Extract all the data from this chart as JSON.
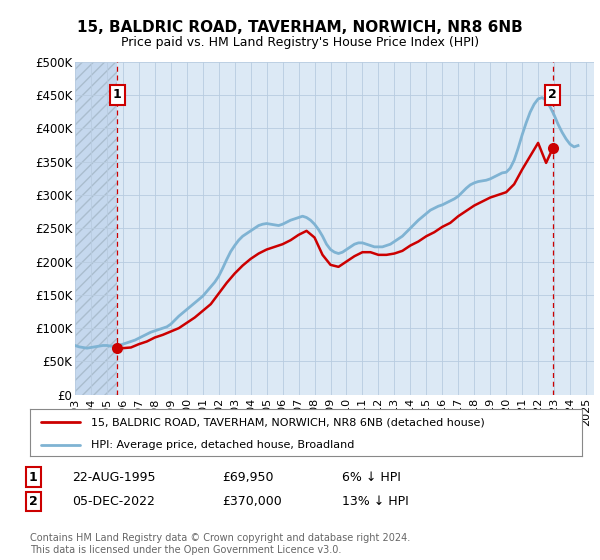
{
  "title": "15, BALDRIC ROAD, TAVERHAM, NORWICH, NR8 6NB",
  "subtitle": "Price paid vs. HM Land Registry's House Price Index (HPI)",
  "ylim": [
    0,
    500000
  ],
  "yticks": [
    0,
    50000,
    100000,
    150000,
    200000,
    250000,
    300000,
    350000,
    400000,
    450000,
    500000
  ],
  "ytick_labels": [
    "£0",
    "£50K",
    "£100K",
    "£150K",
    "£200K",
    "£250K",
    "£300K",
    "£350K",
    "£400K",
    "£450K",
    "£500K"
  ],
  "background_color": "#dce9f5",
  "sale1_date": 1995.65,
  "sale1_price": 69950,
  "sale1_label": "1",
  "sale2_date": 2022.92,
  "sale2_price": 370000,
  "sale2_label": "2",
  "red_line_color": "#cc0000",
  "blue_line_color": "#7fb3d3",
  "dashed_line_color": "#cc0000",
  "marker_color": "#cc0000",
  "note1_date": "22-AUG-1995",
  "note1_price": "£69,950",
  "note1_pct": "6% ↓ HPI",
  "note2_date": "05-DEC-2022",
  "note2_price": "£370,000",
  "note2_pct": "13% ↓ HPI",
  "legend_line1": "15, BALDRIC ROAD, TAVERHAM, NORWICH, NR8 6NB (detached house)",
  "legend_line2": "HPI: Average price, detached house, Broadland",
  "copyright": "Contains HM Land Registry data © Crown copyright and database right 2024.\nThis data is licensed under the Open Government Licence v3.0.",
  "hpi_years": [
    1993.0,
    1993.25,
    1993.5,
    1993.75,
    1994.0,
    1994.25,
    1994.5,
    1994.75,
    1995.0,
    1995.25,
    1995.5,
    1995.75,
    1996.0,
    1996.25,
    1996.5,
    1996.75,
    1997.0,
    1997.25,
    1997.5,
    1997.75,
    1998.0,
    1998.25,
    1998.5,
    1998.75,
    1999.0,
    1999.25,
    1999.5,
    1999.75,
    2000.0,
    2000.25,
    2000.5,
    2000.75,
    2001.0,
    2001.25,
    2001.5,
    2001.75,
    2002.0,
    2002.25,
    2002.5,
    2002.75,
    2003.0,
    2003.25,
    2003.5,
    2003.75,
    2004.0,
    2004.25,
    2004.5,
    2004.75,
    2005.0,
    2005.25,
    2005.5,
    2005.75,
    2006.0,
    2006.25,
    2006.5,
    2006.75,
    2007.0,
    2007.25,
    2007.5,
    2007.75,
    2008.0,
    2008.25,
    2008.5,
    2008.75,
    2009.0,
    2009.25,
    2009.5,
    2009.75,
    2010.0,
    2010.25,
    2010.5,
    2010.75,
    2011.0,
    2011.25,
    2011.5,
    2011.75,
    2012.0,
    2012.25,
    2012.5,
    2012.75,
    2013.0,
    2013.25,
    2013.5,
    2013.75,
    2014.0,
    2014.25,
    2014.5,
    2014.75,
    2015.0,
    2015.25,
    2015.5,
    2015.75,
    2016.0,
    2016.25,
    2016.5,
    2016.75,
    2017.0,
    2017.25,
    2017.5,
    2017.75,
    2018.0,
    2018.25,
    2018.5,
    2018.75,
    2019.0,
    2019.25,
    2019.5,
    2019.75,
    2020.0,
    2020.25,
    2020.5,
    2020.75,
    2021.0,
    2021.25,
    2021.5,
    2021.75,
    2022.0,
    2022.25,
    2022.5,
    2022.75,
    2023.0,
    2023.25,
    2023.5,
    2023.75,
    2024.0,
    2024.25,
    2024.5
  ],
  "hpi_values": [
    74000,
    72000,
    71000,
    70000,
    71000,
    72000,
    73000,
    74000,
    74000,
    73000,
    73000,
    74000,
    76000,
    78000,
    80000,
    82000,
    85000,
    88000,
    91000,
    94000,
    96000,
    98000,
    100000,
    102000,
    106000,
    112000,
    118000,
    123000,
    128000,
    133000,
    138000,
    143000,
    148000,
    155000,
    162000,
    169000,
    178000,
    190000,
    203000,
    215000,
    224000,
    232000,
    238000,
    242000,
    246000,
    250000,
    254000,
    256000,
    257000,
    256000,
    255000,
    254000,
    256000,
    259000,
    262000,
    264000,
    266000,
    268000,
    266000,
    262000,
    256000,
    248000,
    238000,
    226000,
    218000,
    214000,
    212000,
    214000,
    218000,
    222000,
    226000,
    228000,
    228000,
    226000,
    224000,
    222000,
    222000,
    222000,
    224000,
    226000,
    230000,
    234000,
    238000,
    244000,
    250000,
    256000,
    262000,
    267000,
    272000,
    277000,
    280000,
    283000,
    285000,
    288000,
    291000,
    294000,
    298000,
    304000,
    310000,
    315000,
    318000,
    320000,
    321000,
    322000,
    324000,
    327000,
    330000,
    333000,
    334000,
    340000,
    352000,
    370000,
    390000,
    408000,
    424000,
    436000,
    444000,
    446000,
    442000,
    432000,
    420000,
    406000,
    394000,
    384000,
    376000,
    372000,
    374000
  ],
  "price_line_years": [
    1995.65,
    1996.0,
    1996.5,
    1997.0,
    1997.5,
    1998.0,
    1998.5,
    1999.0,
    1999.5,
    2000.0,
    2000.5,
    2001.0,
    2001.5,
    2002.0,
    2002.5,
    2003.0,
    2003.5,
    2004.0,
    2004.5,
    2005.0,
    2005.5,
    2006.0,
    2006.5,
    2007.0,
    2007.5,
    2008.0,
    2008.5,
    2009.0,
    2009.5,
    2010.0,
    2010.5,
    2011.0,
    2011.5,
    2012.0,
    2012.5,
    2013.0,
    2013.5,
    2014.0,
    2014.5,
    2015.0,
    2015.5,
    2016.0,
    2016.5,
    2017.0,
    2017.5,
    2018.0,
    2018.5,
    2019.0,
    2019.5,
    2020.0,
    2020.5,
    2021.0,
    2021.5,
    2022.0,
    2022.5,
    2022.92
  ],
  "price_line_values": [
    69950,
    70000,
    71000,
    76000,
    80000,
    86000,
    90000,
    95000,
    100000,
    108000,
    116000,
    126000,
    136000,
    152000,
    168000,
    182000,
    194000,
    204000,
    212000,
    218000,
    222000,
    226000,
    232000,
    240000,
    246000,
    236000,
    210000,
    195000,
    192000,
    200000,
    208000,
    214000,
    214000,
    210000,
    210000,
    212000,
    216000,
    224000,
    230000,
    238000,
    244000,
    252000,
    258000,
    268000,
    276000,
    284000,
    290000,
    296000,
    300000,
    304000,
    316000,
    338000,
    358000,
    378000,
    348000,
    370000
  ],
  "xtick_years": [
    1993,
    1994,
    1995,
    1996,
    1997,
    1998,
    1999,
    2000,
    2001,
    2002,
    2003,
    2004,
    2005,
    2006,
    2007,
    2008,
    2009,
    2010,
    2011,
    2012,
    2013,
    2014,
    2015,
    2016,
    2017,
    2018,
    2019,
    2020,
    2021,
    2022,
    2023,
    2024,
    2025
  ]
}
